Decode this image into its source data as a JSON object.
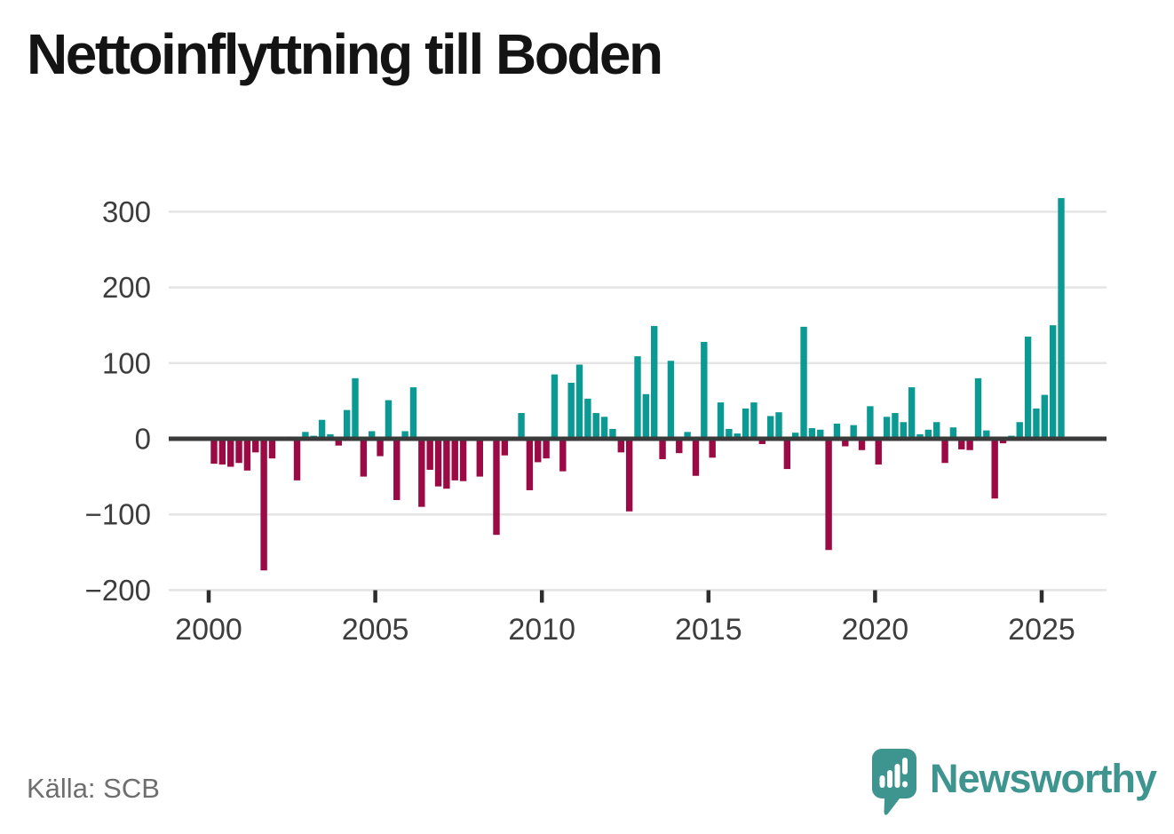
{
  "page": {
    "background": "#ffffff"
  },
  "title": "Nettoinflyttning till Boden",
  "source_caption": "Källa: SCB",
  "branding": {
    "wordmark": "Newsworthy",
    "logo_icon": "newsworthy-speech-bubble-bar-chart-icon",
    "color": "#3e948e"
  },
  "chart_data": {
    "type": "bar",
    "title": "Nettoinflyttning till Boden",
    "frequency": "quarterly",
    "start_period": "2000-Q1",
    "end_period": "2025-Q3",
    "x_axis": {
      "tick_labels": [
        "2000",
        "2005",
        "2010",
        "2015",
        "2020",
        "2025"
      ]
    },
    "y_axis": {
      "tick_values": [
        300,
        200,
        100,
        0,
        -100,
        -200
      ],
      "range": [
        -200,
        330
      ]
    },
    "grid": "horizontal",
    "legend": "none",
    "colors": {
      "positive": "#0b9a93",
      "negative": "#9b0a44"
    },
    "series": [
      {
        "name": "Nettoinflyttning",
        "values": [
          -33,
          -34,
          -37,
          -32,
          -42,
          -18,
          -174,
          -26,
          0,
          3,
          -55,
          9,
          4,
          25,
          6,
          -9,
          38,
          80,
          -50,
          10,
          -23,
          51,
          -81,
          10,
          68,
          -90,
          -41,
          -63,
          -66,
          -55,
          -56,
          0,
          -50,
          0,
          -127,
          -22,
          0,
          34,
          -68,
          -31,
          -26,
          85,
          -43,
          74,
          98,
          53,
          34,
          29,
          13,
          -18,
          -96,
          109,
          59,
          149,
          -27,
          103,
          -19,
          9,
          -49,
          128,
          -25,
          48,
          13,
          7,
          40,
          48,
          -7,
          30,
          35,
          -40,
          8,
          148,
          14,
          12,
          -147,
          20,
          -10,
          18,
          -15,
          43,
          -34,
          29,
          34,
          22,
          68,
          6,
          12,
          22,
          -32,
          15,
          -14,
          -15,
          80,
          11,
          -79,
          -6,
          4,
          22,
          135,
          40,
          58,
          150,
          318
        ]
      }
    ]
  }
}
